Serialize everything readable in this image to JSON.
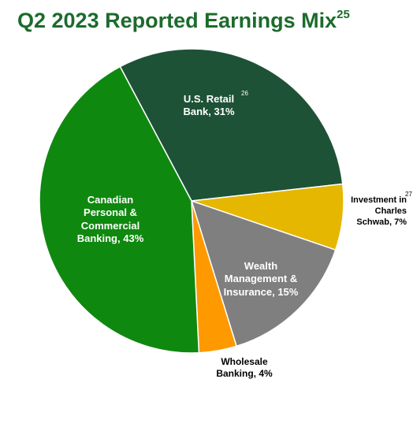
{
  "chart_data": {
    "type": "pie",
    "title": "Q2 2023 Reported Earnings Mix",
    "title_footnote": "25",
    "categories": [
      "U.S. Retail Bank,",
      "Investment in Charles Schwab,",
      "Wealth Management & Insurance,",
      "Wholesale Banking,",
      "Canadian Personal & Commercial Banking,"
    ],
    "label_footnotes": [
      "26",
      "27",
      null,
      null,
      null
    ],
    "values": [
      31,
      7,
      15,
      4,
      43
    ],
    "value_labels": [
      "31%",
      "7%",
      "15%",
      "4%",
      "43%"
    ],
    "colors": [
      "#1e5236",
      "#e5b700",
      "#7f7f7f",
      "#ff9900",
      "#0f880f"
    ]
  }
}
